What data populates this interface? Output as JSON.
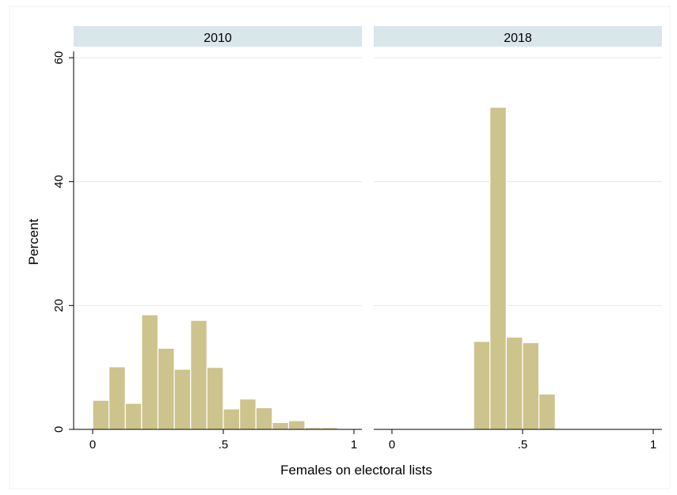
{
  "chart_data": {
    "type": "bar",
    "subtype": "histogram",
    "xlabel": "Females on electoral lists",
    "ylabel": "Percent",
    "ylim": [
      0,
      60
    ],
    "yticks": [
      0,
      20,
      40,
      60
    ],
    "xlim": [
      0,
      1
    ],
    "xticks": [
      {
        "value": 0,
        "label": "0"
      },
      {
        "value": 0.5,
        "label": ".5"
      },
      {
        "value": 1,
        "label": "1"
      }
    ],
    "grid": true,
    "bin_width": 0.0625,
    "bar_color": "#cdc38c",
    "strip_color": "#d9e6ec",
    "panels": [
      {
        "title": "2010",
        "bins": [
          {
            "x0": 0.0,
            "value": 4.7
          },
          {
            "x0": 0.0625,
            "value": 10.1
          },
          {
            "x0": 0.125,
            "value": 4.2
          },
          {
            "x0": 0.1875,
            "value": 18.5
          },
          {
            "x0": 0.25,
            "value": 13.1
          },
          {
            "x0": 0.3125,
            "value": 9.7
          },
          {
            "x0": 0.375,
            "value": 17.6
          },
          {
            "x0": 0.4375,
            "value": 10.0
          },
          {
            "x0": 0.5,
            "value": 3.3
          },
          {
            "x0": 0.5625,
            "value": 4.9
          },
          {
            "x0": 0.625,
            "value": 3.5
          },
          {
            "x0": 0.6875,
            "value": 1.1
          },
          {
            "x0": 0.75,
            "value": 1.4
          },
          {
            "x0": 0.8125,
            "value": 0.3
          },
          {
            "x0": 0.875,
            "value": 0.3
          }
        ]
      },
      {
        "title": "2018",
        "bins": [
          {
            "x0": 0.0,
            "value": 0
          },
          {
            "x0": 0.0625,
            "value": 0
          },
          {
            "x0": 0.125,
            "value": 0
          },
          {
            "x0": 0.1875,
            "value": 0
          },
          {
            "x0": 0.25,
            "value": 0.1
          },
          {
            "x0": 0.3125,
            "value": 14.2
          },
          {
            "x0": 0.375,
            "value": 52.0
          },
          {
            "x0": 0.4375,
            "value": 14.9
          },
          {
            "x0": 0.5,
            "value": 14.0
          },
          {
            "x0": 0.5625,
            "value": 5.7
          },
          {
            "x0": 0.625,
            "value": 0.1
          },
          {
            "x0": 0.6875,
            "value": 0
          },
          {
            "x0": 0.75,
            "value": 0
          },
          {
            "x0": 0.8125,
            "value": 0
          },
          {
            "x0": 0.875,
            "value": 0
          }
        ]
      }
    ]
  }
}
